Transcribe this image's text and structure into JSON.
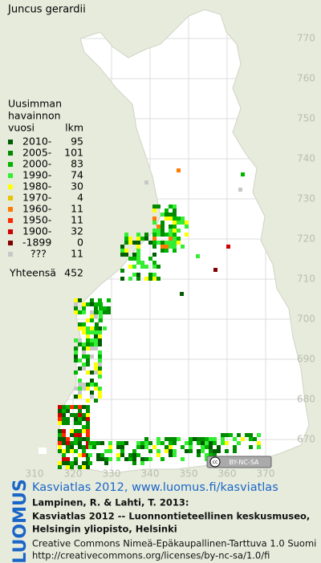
{
  "title": "Juncus gerardii",
  "legend": {
    "heading": [
      "Uusimman",
      "havainnon",
      "vuosi"
    ],
    "count_heading": "lkm",
    "rows": [
      {
        "label": "2010-",
        "count": 95,
        "color": "#005c00"
      },
      {
        "label": "2005-",
        "count": 101,
        "color": "#008a00"
      },
      {
        "label": "2000-",
        "count": 83,
        "color": "#00b400"
      },
      {
        "label": "1990-",
        "count": 74,
        "color": "#33ee33"
      },
      {
        "label": "1980-",
        "count": 30,
        "color": "#ffff00"
      },
      {
        "label": "1970-",
        "count": 4,
        "color": "#e8c400"
      },
      {
        "label": "1960-",
        "count": 11,
        "color": "#ff7a00"
      },
      {
        "label": "1950-",
        "count": 11,
        "color": "#ff2a00"
      },
      {
        "label": "1900-",
        "count": 32,
        "color": "#d00000"
      },
      {
        "label": "-1899",
        "count": 0,
        "color": "#800000"
      },
      {
        "label": "???",
        "count": 11,
        "color": "#c8c8c8"
      }
    ],
    "total_label": "Yhteensä",
    "total": 452
  },
  "y_grid_labels": [
    770,
    760,
    750,
    740,
    730,
    720,
    710,
    700,
    690,
    680,
    670
  ],
  "x_grid_labels": [
    310,
    320,
    330,
    340,
    350,
    360,
    370
  ],
  "cc_badge": [
    "cc",
    "BY-NC-SA"
  ],
  "footer": {
    "logo": "LUOMUS",
    "link": "Kasviatlas 2012, www.luomus.fi/kasviatlas",
    "citation": [
      "Lampinen, R. & Lahti, T. 2013:",
      "Kasviatlas 2012 -- Luonnontieteellinen keskusmuseo,",
      "Helsingin yliopisto, Helsinki"
    ],
    "license": [
      "Creative Commons Nimeä-Epäkaupallinen-Tarttuva 1.0 Suomi",
      "http://creativecommons.org/licenses/by-nc-sa/1.0/fi"
    ]
  }
}
